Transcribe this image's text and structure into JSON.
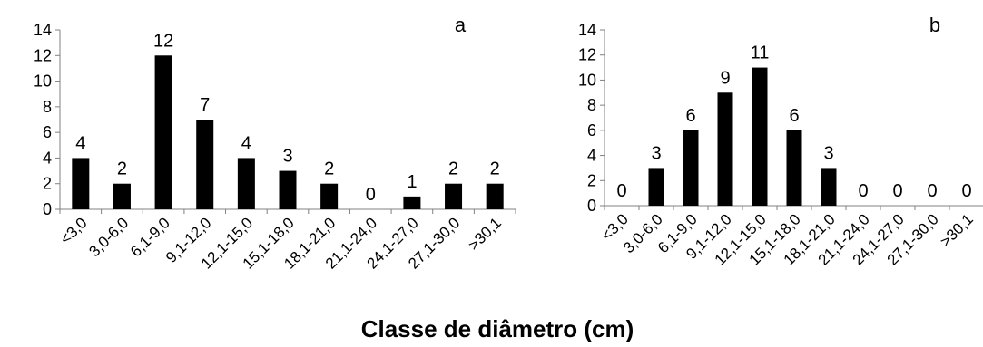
{
  "chart_data": [
    {
      "type": "bar",
      "panel_label": "a",
      "categories": [
        "<3,0",
        "3,0-6,0",
        "6,1-9,0",
        "9,1-12,0",
        "12,1-15,0",
        "15,1-18,0",
        "18,1-21,0",
        "21,1-24,0",
        "24,1-27,0",
        "27,1-30,0",
        ">30,1"
      ],
      "values": [
        4,
        2,
        12,
        7,
        4,
        3,
        2,
        0,
        1,
        2,
        2
      ],
      "ylim": [
        0,
        14
      ],
      "yticks": [
        "0",
        "2",
        "4",
        "6",
        "8",
        "10",
        "12",
        "14"
      ],
      "grid": false,
      "data_labels": true,
      "bar_color": "#000000"
    },
    {
      "type": "bar",
      "panel_label": "b",
      "categories": [
        "<3,0",
        "3,0-6,0",
        "6,1-9,0",
        "9,1-12,0",
        "12,1-15,0",
        "15,1-18,0",
        "18,1-21,0",
        "21,1-24,0",
        "24,1-27,0",
        "27,1-30,0",
        ">30,1"
      ],
      "values": [
        0,
        3,
        6,
        9,
        11,
        6,
        3,
        0,
        0,
        0,
        0
      ],
      "ylim": [
        0,
        14
      ],
      "yticks": [
        "0",
        "2",
        "4",
        "6",
        "8",
        "10",
        "12",
        "14"
      ],
      "grid": false,
      "data_labels": true,
      "bar_color": "#000000"
    }
  ],
  "shared_xlabel": "Classe de diâmetro (cm)"
}
